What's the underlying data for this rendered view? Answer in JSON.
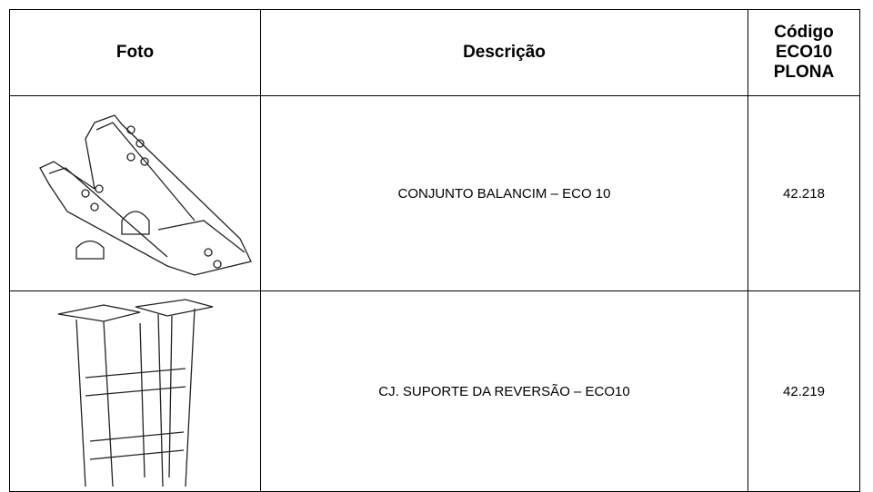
{
  "table": {
    "header": [
      "Foto",
      "Descrição",
      [
        "Código",
        "ECO10",
        "PLONA"
      ]
    ],
    "rows": [
      [
        "CONJUNTO BALANCIM – ECO 10",
        "42.218"
      ],
      [
        "CJ. SUPORTE DA REVERSÃO – ECO10",
        "42.219"
      ]
    ]
  }
}
